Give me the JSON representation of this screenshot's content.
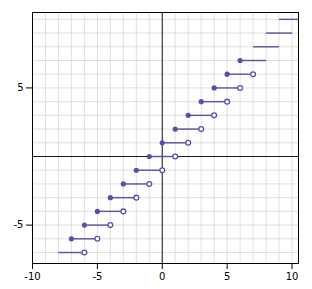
{
  "chart_data": {
    "type": "step",
    "color": "#5b4ea8",
    "grid": true,
    "xlim": [
      -10,
      10.5
    ],
    "ylim": [
      -7.8,
      10.5
    ],
    "xticks": [
      -10,
      -5,
      0,
      5,
      10
    ],
    "yticks": [
      -5,
      5
    ],
    "steps": [
      {
        "y": -7,
        "x_start": -8.0,
        "x_end": -6,
        "has_filled": false,
        "has_open": true
      },
      {
        "y": -6,
        "x_start": -7,
        "x_end": -5,
        "has_filled": true,
        "has_open": true
      },
      {
        "y": -5,
        "x_start": -6,
        "x_end": -4,
        "has_filled": true,
        "has_open": true
      },
      {
        "y": -4,
        "x_start": -5,
        "x_end": -3,
        "has_filled": true,
        "has_open": true
      },
      {
        "y": -3,
        "x_start": -4,
        "x_end": -2,
        "has_filled": true,
        "has_open": true
      },
      {
        "y": -2,
        "x_start": -3,
        "x_end": -1,
        "has_filled": true,
        "has_open": true
      },
      {
        "y": -1,
        "x_start": -2,
        "x_end": 0,
        "has_filled": true,
        "has_open": true
      },
      {
        "y": 0,
        "x_start": -1,
        "x_end": 1,
        "has_filled": true,
        "has_open": true
      },
      {
        "y": 1,
        "x_start": 0,
        "x_end": 2,
        "has_filled": true,
        "has_open": true
      },
      {
        "y": 2,
        "x_start": 1,
        "x_end": 3,
        "has_filled": true,
        "has_open": true
      },
      {
        "y": 3,
        "x_start": 2,
        "x_end": 4,
        "has_filled": true,
        "has_open": true
      },
      {
        "y": 4,
        "x_start": 3,
        "x_end": 5,
        "has_filled": true,
        "has_open": true
      },
      {
        "y": 5,
        "x_start": 4,
        "x_end": 6,
        "has_filled": true,
        "has_open": true
      },
      {
        "y": 6,
        "x_start": 5,
        "x_end": 7,
        "has_filled": true,
        "has_open": true
      },
      {
        "y": 7,
        "x_start": 6,
        "x_end": 8,
        "has_filled": true,
        "has_open": false
      },
      {
        "y": 8,
        "x_start": 7,
        "x_end": 9,
        "has_filled": false,
        "has_open": false
      },
      {
        "y": 9,
        "x_start": 8,
        "x_end": 10,
        "has_filled": false,
        "has_open": false
      },
      {
        "y": 10,
        "x_start": 9,
        "x_end": 10.5,
        "has_filled": false,
        "has_open": false
      }
    ]
  }
}
